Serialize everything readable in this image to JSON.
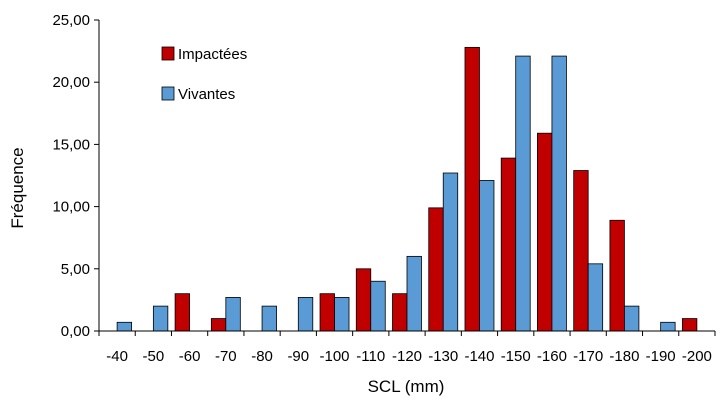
{
  "chart_data": {
    "type": "bar",
    "xlabel": "SCL (mm)",
    "ylabel": "Fréquence",
    "ylim": [
      0,
      25
    ],
    "yticks": [
      "0,00",
      "5,00",
      "10,00",
      "15,00",
      "20,00",
      "25,00"
    ],
    "grid": false,
    "legend_position": "top-left",
    "categories": [
      "-40",
      "-50",
      "-60",
      "-70",
      "-80",
      "-90",
      "-100",
      "-110",
      "-120",
      "-130",
      "-140",
      "-150",
      "-160",
      "-170",
      "-180",
      "-190",
      "-200"
    ],
    "series": [
      {
        "name": "Impactées",
        "color": "#c00000",
        "values": [
          0,
          0,
          3.0,
          1.0,
          0,
          0,
          3.0,
          5.0,
          3.0,
          9.9,
          22.8,
          13.9,
          15.9,
          12.9,
          8.9,
          0,
          1.0
        ]
      },
      {
        "name": "Vivantes",
        "color": "#5b9bd5",
        "values": [
          0.7,
          2.0,
          0,
          2.7,
          2.0,
          2.7,
          2.7,
          4.0,
          6.0,
          12.7,
          12.1,
          22.1,
          22.1,
          5.4,
          2.0,
          0.7,
          0
        ]
      }
    ]
  }
}
